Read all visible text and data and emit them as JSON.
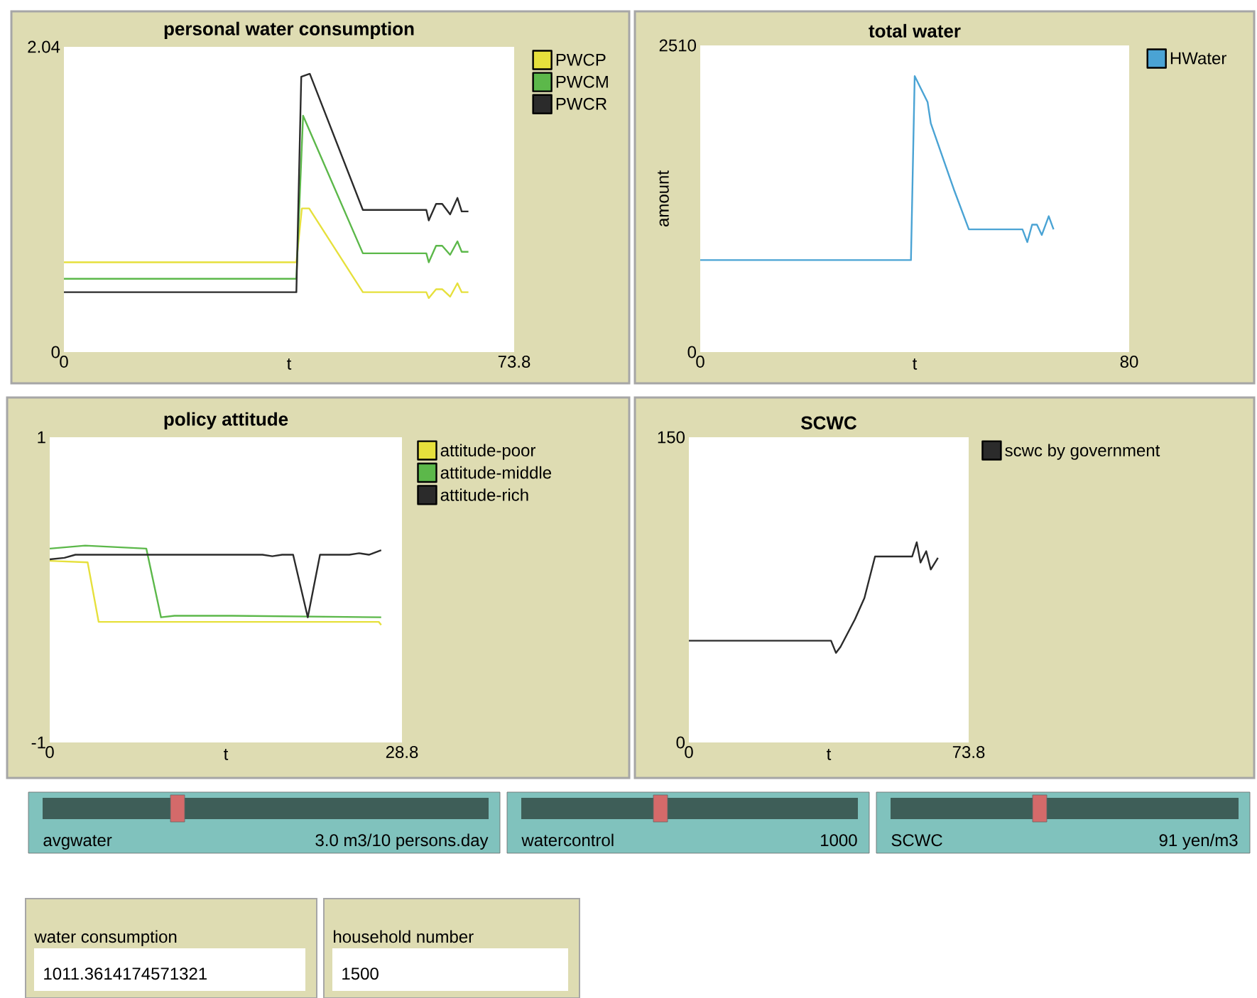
{
  "chart_data": [
    {
      "type": "line",
      "title": "personal water consumption",
      "xlabel": "t",
      "xlim": [
        0,
        73.8
      ],
      "ylim": [
        0,
        2.04
      ],
      "xticks": [
        0,
        73.8
      ],
      "yticks": [
        0,
        2.04
      ],
      "legend": "right",
      "series": [
        {
          "name": "PWCP",
          "color": "#e6e03c",
          "x": [
            0,
            38.1,
            39.0,
            40.2,
            49,
            59.4,
            59.8,
            61,
            62,
            63.3,
            64.5,
            65.2,
            66.3
          ],
          "values": [
            0.6,
            0.6,
            0.96,
            0.96,
            0.4,
            0.4,
            0.36,
            0.42,
            0.42,
            0.37,
            0.46,
            0.4,
            0.4
          ]
        },
        {
          "name": "PWCM",
          "color": "#5cb84a",
          "x": [
            0,
            38.1,
            39.2,
            49,
            59.4,
            59.8,
            61,
            62,
            63.3,
            64.5,
            65.2,
            66.3
          ],
          "values": [
            0.49,
            0.49,
            1.58,
            0.66,
            0.66,
            0.6,
            0.71,
            0.71,
            0.65,
            0.74,
            0.67,
            0.67
          ]
        },
        {
          "name": "PWCR",
          "color": "#2b2b2b",
          "x": [
            0,
            38.1,
            38.9,
            40.3,
            49,
            59.4,
            59.8,
            61,
            62,
            63.3,
            64.5,
            65.2,
            66.3
          ],
          "values": [
            0.4,
            0.4,
            1.84,
            1.86,
            0.95,
            0.95,
            0.88,
            0.99,
            0.99,
            0.92,
            1.03,
            0.94,
            0.94
          ]
        }
      ]
    },
    {
      "type": "line",
      "title": "total water",
      "xlabel": "t",
      "ylabel": "amount",
      "xlim": [
        0,
        80
      ],
      "ylim": [
        0,
        2510
      ],
      "xticks": [
        0,
        80
      ],
      "yticks": [
        0,
        2510
      ],
      "legend": "right",
      "series": [
        {
          "name": "HWater",
          "color": "#4aa3d4",
          "x": [
            0,
            39.3,
            40.0,
            42.4,
            43.0,
            47.3,
            50.1,
            60.1,
            61.0,
            61.9,
            62.8,
            63.7,
            65.0,
            65.9
          ],
          "values": [
            753,
            753,
            2259,
            2047,
            1873,
            1332,
            1004,
            1004,
            900,
            1043,
            1043,
            958,
            1112,
            1004
          ]
        }
      ]
    },
    {
      "type": "line",
      "title": "policy attitude",
      "xlabel": "t",
      "xlim": [
        0,
        28.8
      ],
      "ylim": [
        -1,
        1
      ],
      "xticks": [
        0,
        28.8
      ],
      "yticks": [
        -1,
        1
      ],
      "legend": "right",
      "series": [
        {
          "name": "attitude-poor",
          "color": "#e6e03c",
          "x": [
            0,
            3.1,
            4.0,
            26.9,
            27.1
          ],
          "values": [
            0.19,
            0.18,
            -0.21,
            -0.21,
            -0.23
          ]
        },
        {
          "name": "attitude-middle",
          "color": "#5cb84a",
          "x": [
            0,
            2.9,
            7.9,
            9.1,
            10.2,
            14.9,
            27.1
          ],
          "values": [
            0.27,
            0.29,
            0.27,
            -0.18,
            -0.17,
            -0.17,
            -0.18
          ]
        },
        {
          "name": "attitude-rich",
          "color": "#2b2b2b",
          "x": [
            0,
            1.2,
            2.1,
            17.4,
            18.2,
            19.0,
            19.9,
            21.1,
            22.1,
            24.5,
            25.3,
            26.1,
            27.1
          ],
          "values": [
            0.2,
            0.21,
            0.23,
            0.23,
            0.22,
            0.23,
            0.23,
            -0.18,
            0.23,
            0.23,
            0.24,
            0.23,
            0.26
          ]
        }
      ]
    },
    {
      "type": "line",
      "title": "SCWC",
      "xlabel": "t",
      "xlim": [
        0,
        73.8
      ],
      "ylim": [
        0,
        150
      ],
      "xticks": [
        0,
        73.8
      ],
      "yticks": [
        0,
        150
      ],
      "legend": "right",
      "series": [
        {
          "name": "scwc by government",
          "color": "#2b2b2b",
          "x": [
            0,
            37.5,
            38.8,
            40.0,
            43.8,
            46.3,
            49.1,
            58.9,
            60.1,
            61.1,
            62.6,
            63.8,
            65.7
          ],
          "values": [
            50,
            50,
            44,
            47,
            60.5,
            71,
            91.4,
            91.4,
            98.4,
            88.4,
            94,
            85,
            90.7
          ]
        }
      ]
    },
    {
      "type": "other",
      "annotations": [
        "avgwater",
        "3.0 m3/10 persons.day",
        "watercontrol",
        "1000",
        "SCWC",
        "91 yen/m3",
        "water consumption",
        "1011.3614174571321",
        "household number",
        "1500"
      ]
    }
  ]
}
